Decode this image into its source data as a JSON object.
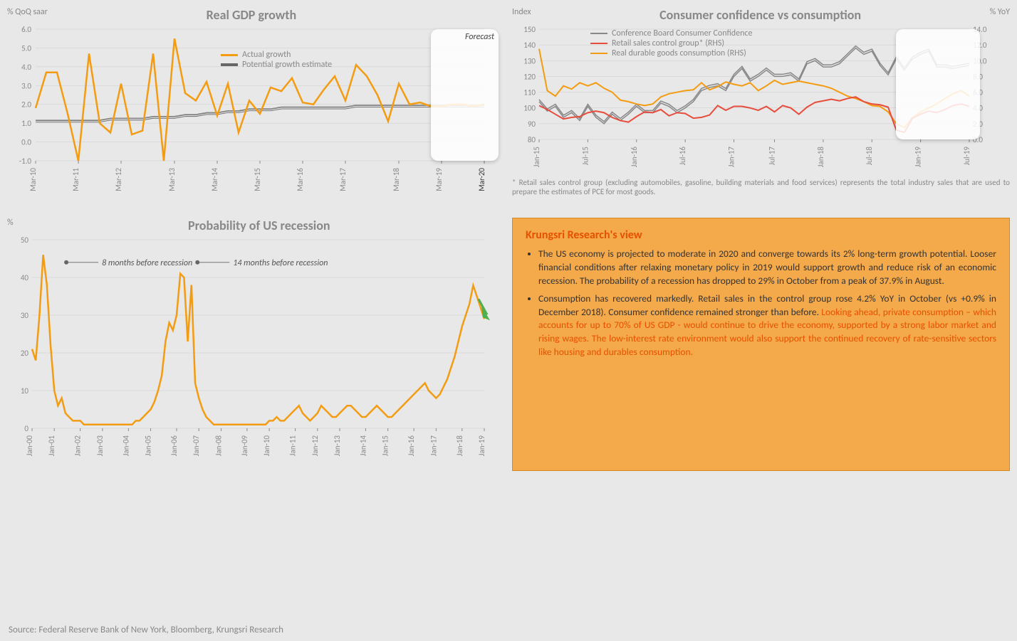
{
  "chart1": {
    "title": "Real GDP growth",
    "yaxis_label": "% QoQ saar",
    "type": "line",
    "ylim": [
      -1,
      6
    ],
    "ytick_step": 1,
    "xlabels": [
      "Mar-10",
      "Mar-11",
      "Mar-12",
      "Mar-13",
      "Mar-14",
      "Mar-15",
      "Mar-16",
      "Mar-17",
      "Mar-18",
      "Mar-19",
      "Mar-20"
    ],
    "forecast_label": "Forecast",
    "legend": [
      {
        "label": "Actual growth",
        "color": "#f39c12",
        "width": 3
      },
      {
        "label": "Potential growth estimate",
        "color": "#666",
        "width": 2,
        "double": true
      }
    ],
    "series": {
      "actual": {
        "color": "#f39c12",
        "width": 2.5,
        "points": [
          1.8,
          3.7,
          3.7,
          1.5,
          -1.0,
          4.7,
          1.0,
          0.5,
          3.1,
          0.4,
          0.6,
          4.7,
          -1.0,
          5.5,
          2.6,
          2.2,
          3.2,
          1.4,
          3.1,
          0.5,
          2.2,
          1.5,
          2.9,
          2.7,
          3.4,
          2.1,
          2.0,
          2.8,
          3.5,
          2.2,
          4.1,
          3.5,
          2.5,
          1.1,
          3.1,
          2.0,
          2.1,
          1.9,
          1.9,
          2.0,
          2.0,
          1.9,
          2.0
        ]
      },
      "potential": {
        "color": "#666",
        "width": 1.5,
        "double": true,
        "points": [
          1.1,
          1.1,
          1.1,
          1.1,
          1.1,
          1.1,
          1.1,
          1.2,
          1.2,
          1.2,
          1.2,
          1.3,
          1.3,
          1.3,
          1.4,
          1.4,
          1.5,
          1.5,
          1.6,
          1.6,
          1.7,
          1.7,
          1.7,
          1.8,
          1.8,
          1.8,
          1.8,
          1.8,
          1.8,
          1.8,
          1.9,
          1.9,
          1.9,
          1.9,
          1.9,
          1.9,
          1.9,
          1.9,
          1.9,
          1.9,
          1.9,
          1.9,
          1.9
        ]
      }
    },
    "grid_color": "#ccc",
    "background": "#e8e8e8",
    "label_fontsize": 12,
    "title_fontsize": 18
  },
  "chart2": {
    "title": "Consumer confidence vs consumption",
    "yaxis_left": "Index",
    "yaxis_right": "% YoY",
    "type": "line",
    "ylim_left": [
      80,
      150
    ],
    "ytick_left": 10,
    "ylim_right": [
      0,
      14
    ],
    "ytick_right": 2,
    "xlabels": [
      "Jan-15",
      "Jul-15",
      "Jan-16",
      "Jul-16",
      "Jan-17",
      "Jul-17",
      "Jan-18",
      "Jul-18",
      "Jan-19",
      "Jul-19"
    ],
    "footnote": "* Retail sales control group (excluding automobiles, gasoline, building materials and food services) represents the total industry sales that are used to prepare the estimates of PCE for most goods.",
    "legend": [
      {
        "label": "Conference Board Consumer Confidence",
        "color": "#888",
        "width": 2,
        "double": true
      },
      {
        "label": "Retail sales control group* (RHS)",
        "color": "#e74c3c",
        "width": 2
      },
      {
        "label": "Real durable goods consumption (RHS)",
        "color": "#f39c12",
        "width": 2
      }
    ],
    "series": {
      "confidence": {
        "color": "#888",
        "width": 1.5,
        "double": true,
        "axis": "left",
        "points": [
          104,
          98,
          101,
          94,
          97,
          92,
          101,
          94,
          90,
          96,
          92,
          96,
          101,
          97,
          97,
          103,
          101,
          97,
          100,
          104,
          111,
          113,
          114,
          111,
          120,
          125,
          117,
          120,
          124,
          120,
          120,
          121,
          117,
          128,
          130,
          126,
          126,
          128,
          133,
          138,
          134,
          136,
          127,
          121,
          131,
          124,
          131,
          134,
          136,
          126,
          126,
          125,
          126,
          127
        ]
      },
      "retail": {
        "color": "#e74c3c",
        "width": 2,
        "axis": "right",
        "points": [
          4.3,
          3.8,
          3.2,
          2.6,
          2.8,
          2.9,
          3.4,
          3.6,
          3.4,
          2.8,
          2.4,
          2.2,
          2.9,
          3.5,
          3.4,
          3.8,
          3.0,
          3.4,
          3.3,
          2.7,
          2.8,
          3.1,
          4.3,
          3.7,
          4.2,
          4.2,
          4.0,
          3.7,
          4.2,
          3.5,
          4.3,
          4.0,
          3.2,
          4.1,
          4.7,
          4.9,
          5.1,
          4.9,
          5.2,
          5.4,
          4.8,
          4.5,
          4.4,
          4.1,
          1.2,
          0.9,
          2.7,
          3.2,
          3.6,
          3.4,
          3.8,
          4.3,
          4.5,
          4.2
        ]
      },
      "durables": {
        "color": "#f39c12",
        "width": 2,
        "axis": "right",
        "points": [
          11.5,
          6.2,
          5.5,
          6.8,
          6.4,
          7.2,
          6.8,
          7.2,
          6.5,
          6.0,
          5.0,
          4.8,
          4.5,
          4.3,
          4.5,
          5.4,
          5.8,
          6.0,
          6.2,
          6.3,
          7.2,
          6.3,
          6.7,
          7.3,
          7.0,
          6.8,
          7.2,
          6.2,
          6.8,
          7.5,
          7.0,
          7.2,
          7.4,
          7.2,
          7.0,
          6.8,
          6.5,
          6.0,
          5.5,
          5.2,
          4.8,
          4.3,
          4.2,
          3.5,
          2.0,
          1.5,
          2.8,
          3.5,
          4.0,
          4.5,
          5.2,
          5.8,
          6.2,
          5.5
        ]
      }
    },
    "grid_color": "#ccc",
    "background": "#e8e8e8"
  },
  "chart3": {
    "title": "Probability of US recession",
    "yaxis_label": "%",
    "type": "line",
    "ylim": [
      0,
      50
    ],
    "ytick_step": 10,
    "xlabels": [
      "Jan-00",
      "Jan-01",
      "Jan-02",
      "Jan-03",
      "Jan-04",
      "Jan-05",
      "Jan-06",
      "Jan-07",
      "Jan-08",
      "Jan-09",
      "Jan-10",
      "Jan-11",
      "Jan-12",
      "Jan-13",
      "Jan-14",
      "Jan-15",
      "Jan-16",
      "Jan-17",
      "Jan-18",
      "Jan-19"
    ],
    "annotations": [
      {
        "text": "8 months before recession",
        "x": 0.06
      },
      {
        "text": "14 months before recession",
        "x": 0.35
      }
    ],
    "series": {
      "prob": {
        "color": "#f39c12",
        "width": 2.5,
        "points": [
          21,
          18,
          30,
          46,
          38,
          22,
          10,
          6,
          8,
          4,
          3,
          2,
          2,
          2,
          1,
          1,
          1,
          1,
          1,
          1,
          1,
          1,
          1,
          1,
          1,
          1,
          1,
          1,
          2,
          2,
          3,
          4,
          5,
          7,
          10,
          14,
          23,
          28,
          26,
          30,
          41,
          40,
          23,
          38,
          12,
          8,
          5,
          3,
          2,
          1,
          1,
          1,
          1,
          1,
          1,
          1,
          1,
          1,
          1,
          1,
          1,
          1,
          1,
          1,
          2,
          2,
          3,
          2,
          2,
          3,
          4,
          5,
          6,
          4,
          3,
          2,
          3,
          4,
          6,
          5,
          4,
          3,
          3,
          4,
          5,
          6,
          6,
          5,
          4,
          3,
          3,
          4,
          5,
          6,
          5,
          4,
          3,
          3,
          4,
          5,
          6,
          7,
          8,
          9,
          10,
          11,
          12,
          10,
          9,
          8,
          9,
          11,
          13,
          16,
          19,
          23,
          27,
          30,
          33,
          37.9,
          35,
          32,
          29
        ]
      }
    },
    "arrow_color": "#4CAF50",
    "grid_color": "#ccc",
    "background": "#e8e8e8"
  },
  "research": {
    "title": "Krungsri Research's view",
    "bullet1_plain": "The US economy is projected to moderate in 2020 and converge towards its 2% long-term growth potential. Looser financial conditions after relaxing monetary policy in 2019 would support growth and reduce risk of an economic recession. The probability of a recession has dropped to 29% in October from a peak of 37.9% in August.",
    "bullet2_plain": "Consumption has recovered markedly. Retail sales in the control group rose 4.2% YoY in October (vs +0.9% in December 2018). Consumer confidence remained stronger than before. ",
    "bullet2_highlight": "Looking ahead, private consumption – which accounts for up to 70% of US GDP - would continue to drive the economy, supported by a strong labor market and rising wages. The low-interest rate environment would also support the continued recovery of rate-sensitive sectors like housing and durables consumption."
  },
  "source": "Source: Federal Reserve Bank of New York, Bloomberg, Krungsri Research"
}
